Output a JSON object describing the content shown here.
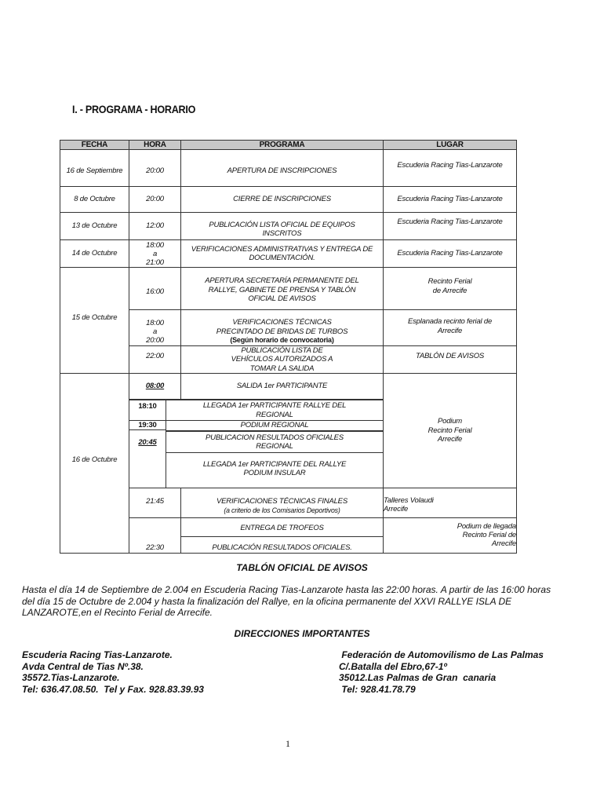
{
  "section_title": "I. - PROGRAMA - HORARIO",
  "table": {
    "headers": {
      "fecha": "FECHA",
      "hora": "HORA",
      "programa": "PROGRAMA",
      "lugar": "LUGAR"
    },
    "r1": {
      "fecha": "16 de Septiembre",
      "hora": "20:00",
      "programa": "APERTURA DE INSCRIPCIONES",
      "lugar": "Escuderia Racing Tias-Lanzarote"
    },
    "r2": {
      "fecha": "8 de Octubre",
      "hora": "20:00",
      "programa": "CIERRE DE INSCRIPCIONES",
      "lugar": "Escuderia Racing Tias-Lanzarote"
    },
    "r3": {
      "fecha": "13 de Octubre",
      "hora": "12:00",
      "programa": "PUBLICACIÓN LISTA OFICIAL DE EQUIPOS INSCRITOS",
      "lugar": "Escuderia Racing Tias-Lanzarote"
    },
    "r4": {
      "fecha": "14 de Octubre",
      "hora": [
        "18:00",
        "a",
        "21:00"
      ],
      "programa": "VERIFICACIONES ADMINISTRATIVAS Y ENTREGA DE DOCUMENTACIÓN.",
      "lugar": "Escuderia Racing Tias-Lanzarote"
    },
    "r5": {
      "fecha": "15 de Octubre",
      "a": {
        "hora": "16:00",
        "programa": "APERTURA SECRETARÍA PERMANENTE DEL RALLYE, GABINETE DE PRENSA Y TABLÓN OFICIAL DE AVISOS",
        "lugar": [
          "Recinto Ferial",
          "de Arrecife"
        ]
      },
      "b": {
        "hora": [
          "18:00",
          "a",
          "20:00"
        ],
        "programa": [
          "VERIFICACIONES TÉCNICAS",
          "PRECINTADO DE BRIDAS DE TURBOS",
          "(Según horario de convocatoria)"
        ],
        "lugar": "Esplanada recinto ferial de Arrecife"
      },
      "c": {
        "hora": "22:00",
        "programa": "PUBLICACIÓN LISTA DE VEHÍCULOS AUTORIZADOS A TOMAR LA SALIDA",
        "lugar": "TABLÓN DE AVISOS"
      }
    },
    "r6": {
      "fecha": "16 de Octubre",
      "a": {
        "hora": "08:00",
        "programa": "SALIDA 1er PARTICIPANTE"
      },
      "b": {
        "hora": "18:10",
        "programa": "LLEGADA 1er PARTICIPANTE RALLYE DEL REGIONAL"
      },
      "c": {
        "hora": "19:30",
        "programa": "PODIUM REGIONAL"
      },
      "d": {
        "hora": "20:45",
        "programa": "PUBLICACION RESULTADOS OFICIALES REGIONAL"
      },
      "e": {
        "programa": "LLEGADA 1er PARTICIPANTE DEL RALLYE PODIUM INSULAR"
      },
      "lugar_podium": [
        "Podium",
        "Recinto Ferial",
        "Arrecife"
      ],
      "f": {
        "hora": "21:45",
        "programa": "VERIFICACIONES TÉCNICAS FINALES",
        "programa_note": "(a criterio de los Comisarios Deportivos)",
        "lugar": [
          "Talleres Volaudi",
          "Arrecife"
        ]
      },
      "g": {
        "hora": "22:30",
        "programa_1": "ENTREGA DE TROFEOS",
        "programa_2": "PUBLICACIÓN RESULTADOS OFICIALES.",
        "lugar": [
          "Podium de llegada",
          "Recinto Ferial de",
          "Arrecife"
        ]
      }
    }
  },
  "tablon": {
    "title": "TABLÓN OFICIAL DE AVISOS",
    "text": "Hasta el día 14 de Septiembre de 2.004 en Escuderia Racing Tias-Lanzarote hasta las 22:00 horas. A partir de las 16:00 horas del día 15 de Octubre de 2.004 y hasta la finalización del Rallye, en la oficina permanente del XXVI RALLYE  ISLA DE LANZAROTE,en el Recinto Ferial de Arrecife."
  },
  "direcciones": {
    "title": "DIRECCIONES IMPORTANTES",
    "left": [
      "Escuderia Racing Tias-Lanzarote.",
      "Avda Central de Tias Nº.38.",
      "35572.Tias-Lanzarote.",
      "Tel: 636.47.08.50.  Tel y Fax. 928.83.39.93"
    ],
    "right": [
      " Federación de Automovilismo de Las Palmas",
      "C/.Batalla del Ebro,67-1º",
      "35012.Las Palmas de Gran  canaria",
      " Tel: 928.41.78.79"
    ]
  },
  "page_number": "1"
}
